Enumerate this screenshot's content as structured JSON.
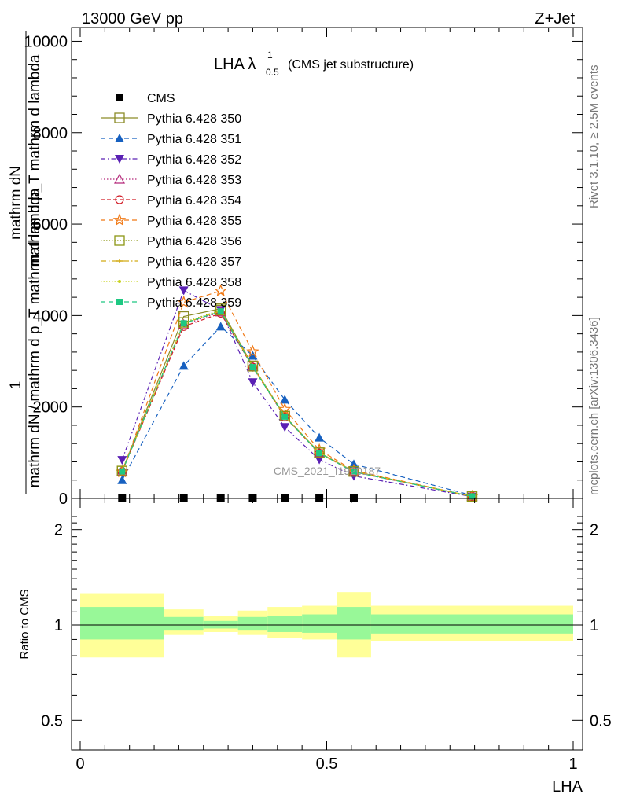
{
  "header": {
    "left": "13000 GeV pp",
    "right": "Z+Jet"
  },
  "side_labels": {
    "rivet": "Rivet 3.1.10, ≥ 2.5M events",
    "mcplots": "mcplots.cern.ch [arXiv:1306.3436]"
  },
  "watermark": "CMS_2021_I1920187",
  "chart_data": [
    {
      "type": "line",
      "panel": "main",
      "title_main": "LHA λ",
      "title_sup": "1",
      "title_sub": "0.5",
      "title_suffix": "(CMS jet substructure)",
      "ylabel_top": "mathrm dN",
      "ylabel_top_frac": "mathrm d p_T mathrm d lambda",
      "ylabel_bottom": "1",
      "ylabel_bottom_frac": "mathrm dN / mathrm d p_T",
      "ylabel_bottom_frac2": "mathrm dN / mathrm d p_T mathrm d lambda",
      "xlim": [
        0,
        1
      ],
      "ylim": [
        0,
        10300
      ],
      "ytick_labels": [
        "0",
        "2000",
        "4000",
        "6000",
        "8000",
        "10000"
      ],
      "ytick_values": [
        0,
        2000,
        4000,
        6000,
        8000,
        10000
      ],
      "legend_placement": "top-left",
      "series": [
        {
          "name": "CMS",
          "color": "#000000",
          "marker": "square-filled",
          "dash": "none",
          "x": [
            0.085,
            0.21,
            0.285,
            0.35,
            0.415,
            0.485,
            0.555
          ],
          "y": [
            0,
            0,
            0,
            0,
            0,
            0,
            0
          ]
        },
        {
          "name": "Pythia 6.428 350",
          "color": "#8c8c28",
          "marker": "square-open",
          "dash": "solid",
          "x": [
            0.085,
            0.21,
            0.285,
            0.35,
            0.415,
            0.485,
            0.555,
            0.795
          ],
          "y": [
            600,
            3980,
            4150,
            2900,
            1800,
            1000,
            590,
            45
          ]
        },
        {
          "name": "Pythia 6.428 351",
          "color": "#1660c0",
          "marker": "triangle-up-filled",
          "dash": "6,4",
          "x": [
            0.085,
            0.21,
            0.285,
            0.35,
            0.415,
            0.485,
            0.555,
            0.795
          ],
          "y": [
            400,
            2900,
            3760,
            3120,
            2160,
            1330,
            750,
            65
          ]
        },
        {
          "name": "Pythia 6.428 352",
          "color": "#5a20b4",
          "marker": "triangle-down-filled",
          "dash": "6,3,1.5,3",
          "x": [
            0.085,
            0.21,
            0.285,
            0.35,
            0.415,
            0.485,
            0.555,
            0.795
          ],
          "y": [
            840,
            4550,
            4120,
            2540,
            1560,
            850,
            490,
            40
          ]
        },
        {
          "name": "Pythia 6.428 353",
          "color": "#b4287a",
          "marker": "triangle-up-open",
          "dash": "1.5,2.5",
          "x": [
            0.085,
            0.21,
            0.285,
            0.35,
            0.415,
            0.485,
            0.555,
            0.795
          ],
          "y": [
            600,
            3800,
            4080,
            2880,
            1790,
            1000,
            590,
            45
          ]
        },
        {
          "name": "Pythia 6.428 354",
          "color": "#d21e28",
          "marker": "circle-open",
          "dash": "5,3",
          "x": [
            0.085,
            0.21,
            0.285,
            0.35,
            0.415,
            0.485,
            0.555,
            0.795
          ],
          "y": [
            590,
            3760,
            4050,
            2870,
            1780,
            990,
            580,
            45
          ]
        },
        {
          "name": "Pythia 6.428 355",
          "color": "#f07814",
          "marker": "star-open",
          "dash": "6,4",
          "x": [
            0.085,
            0.21,
            0.285,
            0.35,
            0.415,
            0.485,
            0.555,
            0.795
          ],
          "y": [
            580,
            4290,
            4540,
            3210,
            1950,
            1060,
            610,
            45
          ]
        },
        {
          "name": "Pythia 6.428 356",
          "color": "#8c9614",
          "marker": "square-open",
          "dash": "1.5,2",
          "x": [
            0.085,
            0.21,
            0.285,
            0.35,
            0.415,
            0.485,
            0.555,
            0.795
          ],
          "y": [
            600,
            3850,
            4120,
            2890,
            1800,
            1000,
            590,
            45
          ]
        },
        {
          "name": "Pythia 6.428 357",
          "color": "#d2aa14",
          "marker": "dash-cross",
          "dash": "7,3,1.5,3",
          "x": [
            0.085,
            0.21,
            0.285,
            0.35,
            0.415,
            0.485,
            0.555,
            0.795
          ],
          "y": [
            590,
            3830,
            4100,
            2880,
            1790,
            1000,
            590,
            45
          ]
        },
        {
          "name": "Pythia 6.428 358",
          "color": "#c8d21e",
          "marker": "dot",
          "dash": "1.5,2",
          "x": [
            0.085,
            0.21,
            0.285,
            0.35,
            0.415,
            0.485,
            0.555,
            0.795
          ],
          "y": [
            600,
            3840,
            4110,
            2890,
            1800,
            1000,
            590,
            45
          ]
        },
        {
          "name": "Pythia 6.428 359",
          "color": "#1ec882",
          "marker": "square-filled-small",
          "dash": "6,4",
          "x": [
            0.085,
            0.21,
            0.285,
            0.35,
            0.415,
            0.485,
            0.555,
            0.795
          ],
          "y": [
            590,
            3830,
            4090,
            2870,
            1790,
            990,
            580,
            45
          ]
        }
      ]
    },
    {
      "type": "area",
      "panel": "ratio",
      "ylabel": "Ratio to CMS",
      "xlabel": "LHA",
      "xlim": [
        0,
        1
      ],
      "ylim": [
        0.4,
        2.3
      ],
      "y_scale": "log",
      "xtick_labels": [
        "0",
        "0.5",
        "1"
      ],
      "xtick_values": [
        0,
        0.5,
        1
      ],
      "ytick_labels": [
        "0.5",
        "1",
        "2"
      ],
      "ytick_values": [
        0.5,
        1,
        2
      ],
      "reference_line": 1,
      "bins": [
        {
          "x0": 0.0,
          "x1": 0.17,
          "stat": [
            0.9,
            1.14
          ],
          "total": [
            0.79,
            1.26
          ]
        },
        {
          "x0": 0.17,
          "x1": 0.25,
          "stat": [
            0.96,
            1.06
          ],
          "total": [
            0.93,
            1.12
          ]
        },
        {
          "x0": 0.25,
          "x1": 0.32,
          "stat": [
            0.975,
            1.03
          ],
          "total": [
            0.95,
            1.07
          ]
        },
        {
          "x0": 0.32,
          "x1": 0.38,
          "stat": [
            0.96,
            1.06
          ],
          "total": [
            0.93,
            1.11
          ]
        },
        {
          "x0": 0.38,
          "x1": 0.45,
          "stat": [
            0.95,
            1.07
          ],
          "total": [
            0.91,
            1.14
          ]
        },
        {
          "x0": 0.45,
          "x1": 0.52,
          "stat": [
            0.945,
            1.08
          ],
          "total": [
            0.9,
            1.15
          ]
        },
        {
          "x0": 0.52,
          "x1": 0.59,
          "stat": [
            0.9,
            1.14
          ],
          "total": [
            0.79,
            1.27
          ]
        },
        {
          "x0": 0.59,
          "x1": 1.0,
          "stat": [
            0.94,
            1.08
          ],
          "total": [
            0.89,
            1.15
          ]
        }
      ],
      "band_colors": {
        "stat": "#98f898",
        "total": "#ffff98"
      }
    }
  ]
}
